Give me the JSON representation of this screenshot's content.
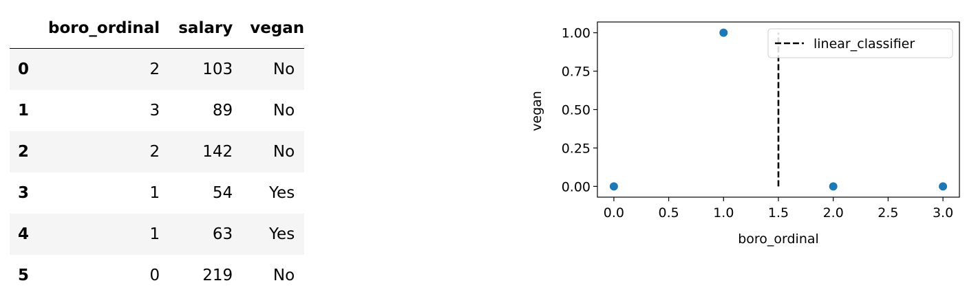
{
  "table": {
    "columns": [
      "boro_ordinal",
      "salary",
      "vegan"
    ],
    "rows": [
      {
        "index": "0",
        "boro_ordinal": "2",
        "salary": "103",
        "vegan": "No"
      },
      {
        "index": "1",
        "boro_ordinal": "3",
        "salary": "89",
        "vegan": "No"
      },
      {
        "index": "2",
        "boro_ordinal": "2",
        "salary": "142",
        "vegan": "No"
      },
      {
        "index": "3",
        "boro_ordinal": "1",
        "salary": "54",
        "vegan": "Yes"
      },
      {
        "index": "4",
        "boro_ordinal": "1",
        "salary": "63",
        "vegan": "Yes"
      },
      {
        "index": "5",
        "boro_ordinal": "0",
        "salary": "219",
        "vegan": "No"
      }
    ]
  },
  "chart_data": {
    "type": "scatter",
    "title": "",
    "xlabel": "boro_ordinal",
    "ylabel": "vegan",
    "xlim": [
      -0.15,
      3.15
    ],
    "ylim": [
      -0.07,
      1.07
    ],
    "xticks": [
      "0.0",
      "0.5",
      "1.0",
      "1.5",
      "2.0",
      "2.5",
      "3.0"
    ],
    "yticks": [
      "0.00",
      "0.25",
      "0.50",
      "0.75",
      "1.00"
    ],
    "grid": false,
    "legend_position": "top-right",
    "points_color": "#1f77b4",
    "points": [
      {
        "x": 0,
        "y": 0
      },
      {
        "x": 1,
        "y": 1
      },
      {
        "x": 2,
        "y": 0
      },
      {
        "x": 3,
        "y": 0
      }
    ],
    "series": [
      {
        "name": "linear_classifier",
        "type": "vline",
        "x": 1.5,
        "y_range": [
          0,
          1
        ],
        "style": "dashed",
        "color": "#000000"
      }
    ]
  }
}
